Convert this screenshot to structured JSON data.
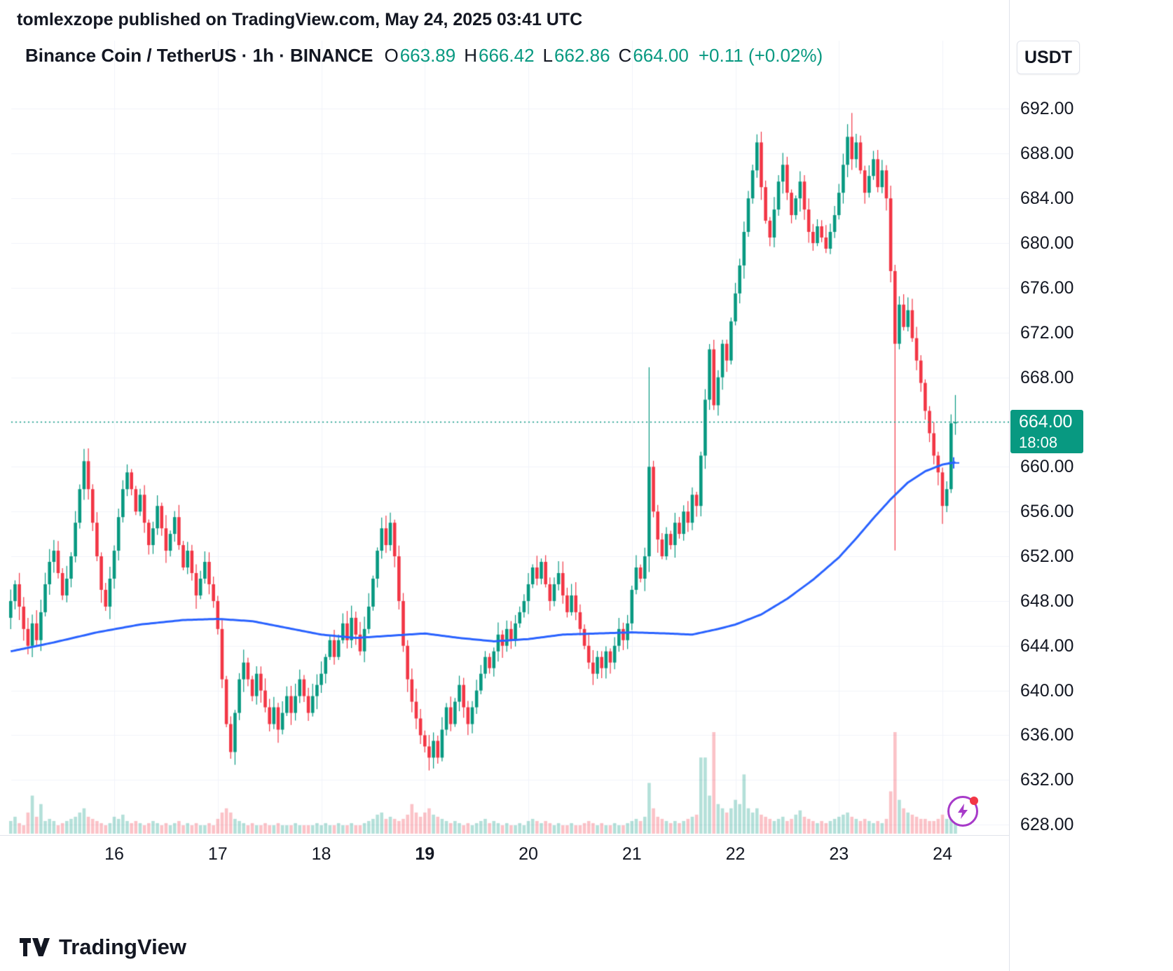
{
  "header": {
    "published_line": "tomlexzope published on TradingView.com, May 24, 2025 03:41 UTC"
  },
  "symbol_bar": {
    "title": "Binance Coin / TetherUS · 1h · BINANCE",
    "o_label": "O",
    "o": "663.89",
    "h_label": "H",
    "h": "666.42",
    "l_label": "L",
    "l": "662.86",
    "c_label": "C",
    "c": "664.00",
    "change": "+0.11 (+0.02%)"
  },
  "price_scale": {
    "currency": "USDT",
    "current_price": "664.00",
    "countdown": "18:08"
  },
  "footer": {
    "brand": "TradingView"
  },
  "colors": {
    "up": "#089981",
    "down": "#f23645",
    "volume_up": "rgba(8,153,129,0.30)",
    "volume_down": "rgba(242,54,69,0.30)",
    "ma_line": "#2962ff",
    "current_price_line": "#089981",
    "grid": "#f0f3fa",
    "text": "#131722",
    "axis_border": "#e0e3eb",
    "tag_bg": "#089981",
    "crosshair_plus": "#2962ff",
    "flash_purple": "#a73ac9",
    "dot_red": "#f23645"
  },
  "chart_data": {
    "type": "candlestick",
    "title": "Binance Coin / TetherUS",
    "interval": "1h",
    "exchange": "BINANCE",
    "quote_currency": "USDT",
    "last_bar": {
      "o": 663.89,
      "h": 666.42,
      "l": 662.86,
      "c": 664.0,
      "change": 0.11,
      "change_pct": 0.02
    },
    "current_price": 664.0,
    "bar_countdown": "18:08",
    "ylim": [
      627.2,
      698.1
    ],
    "y_ticks": [
      628,
      632,
      636,
      640,
      644,
      648,
      652,
      656,
      660,
      664,
      668,
      672,
      676,
      680,
      684,
      688,
      692
    ],
    "day_ticks": [
      {
        "label": "16",
        "index": 24,
        "bold": false
      },
      {
        "label": "17",
        "index": 48,
        "bold": false
      },
      {
        "label": "18",
        "index": 72,
        "bold": false
      },
      {
        "label": "19",
        "index": 96,
        "bold": true
      },
      {
        "label": "20",
        "index": 120,
        "bold": false
      },
      {
        "label": "21",
        "index": 144,
        "bold": false
      },
      {
        "label": "22",
        "index": 168,
        "bold": false
      },
      {
        "label": "23",
        "index": 192,
        "bold": false
      },
      {
        "label": "24",
        "index": 216,
        "bold": false
      }
    ],
    "candles_per_day": 24,
    "first_open": 646.5,
    "closes": [
      648,
      649.5,
      647.5,
      645.5,
      644,
      646,
      644.5,
      647,
      649.5,
      651.5,
      652.5,
      650.5,
      648.5,
      650,
      652,
      655,
      658,
      660.5,
      658,
      655,
      652,
      649,
      647.5,
      650,
      652.5,
      655.5,
      658,
      659.5,
      658,
      656,
      657.5,
      655,
      653,
      654.5,
      656.5,
      654.5,
      652.5,
      654,
      655.5,
      653,
      651,
      652.5,
      650.5,
      648.5,
      650,
      651.5,
      649.5,
      648,
      645.5,
      641,
      637,
      634.5,
      638,
      641,
      642.5,
      641,
      639.5,
      641.5,
      640,
      638.5,
      637,
      638.5,
      636.5,
      638,
      639.5,
      638,
      639.5,
      641,
      639.5,
      638,
      639.5,
      640.5,
      641.5,
      643,
      644.5,
      643,
      644.5,
      646,
      644.5,
      646.5,
      645,
      643.5,
      645.5,
      647.5,
      650,
      652.5,
      654.5,
      653,
      655,
      652,
      648,
      644,
      641,
      639,
      637.5,
      636,
      635,
      634,
      635.5,
      634,
      636.5,
      638.5,
      637,
      639,
      640.5,
      638.5,
      637,
      638.5,
      640,
      641.5,
      643,
      642,
      643.5,
      645,
      644,
      645.5,
      644.5,
      646,
      647,
      648,
      649.5,
      651,
      650,
      651.5,
      649.5,
      648,
      649.5,
      650.5,
      648.5,
      647,
      648.5,
      647,
      645.5,
      644,
      642.5,
      641.5,
      643,
      642,
      643.5,
      642.5,
      644,
      645.5,
      644.5,
      646,
      649,
      651,
      650,
      652,
      660,
      656,
      653.5,
      652,
      654,
      653,
      655,
      654,
      656,
      655,
      657.5,
      656.5,
      661,
      666,
      670.5,
      665.5,
      668,
      671,
      669.5,
      673,
      675.5,
      678,
      681,
      684,
      686.5,
      689,
      685,
      682,
      680.5,
      683,
      685.5,
      687,
      684.5,
      682.5,
      684,
      685.5,
      683,
      681,
      680,
      681.5,
      680.5,
      679.5,
      681,
      682.5,
      684.5,
      687,
      689.5,
      687.5,
      689,
      686.5,
      684.5,
      686,
      687.5,
      685,
      686.5,
      684,
      677.5,
      671,
      674.5,
      672.5,
      674,
      671.5,
      669.5,
      667.5,
      665,
      663,
      661,
      659.5,
      656.5,
      658,
      663.89,
      664
    ],
    "volumes": [
      3,
      4,
      2.5,
      2,
      5,
      9,
      4,
      7,
      3,
      3.5,
      3,
      2,
      2.5,
      3,
      3.5,
      4,
      5,
      6,
      4,
      3.5,
      3,
      2.5,
      2,
      2.5,
      4,
      3.5,
      4.5,
      3,
      2.5,
      3,
      2.5,
      2,
      2.5,
      3,
      2.5,
      2,
      2.5,
      2,
      2.5,
      3,
      2,
      2.5,
      2,
      2.5,
      2,
      2,
      2.5,
      2,
      3.5,
      5,
      6,
      5,
      3.5,
      3,
      2.5,
      2,
      2.5,
      2,
      2,
      2.5,
      2,
      2,
      2.5,
      2,
      2,
      2,
      2.5,
      2,
      2,
      2,
      2,
      2.5,
      2,
      2.5,
      2,
      2,
      2.5,
      2,
      2,
      2.5,
      2,
      2,
      2.5,
      3,
      3.5,
      4.5,
      5,
      3.5,
      4,
      3.5,
      3,
      3.5,
      4.5,
      7,
      5,
      4,
      5,
      6,
      4.5,
      4,
      3.5,
      3,
      2.5,
      3,
      2.5,
      2,
      2.5,
      2,
      2.5,
      3,
      3.5,
      2.5,
      3,
      2.5,
      2,
      2.5,
      2,
      2,
      2.5,
      2,
      3,
      3.5,
      3,
      2.5,
      3,
      2.5,
      2,
      2.5,
      2,
      2,
      2.5,
      2,
      2,
      2.5,
      3,
      2.5,
      2,
      2.5,
      2,
      2,
      2.5,
      2,
      2,
      2.5,
      3,
      3.5,
      3,
      4,
      12,
      6,
      4,
      3.5,
      3,
      2.5,
      3,
      2.5,
      3,
      3.5,
      4,
      4.5,
      18,
      18,
      9,
      24,
      7,
      6,
      5,
      6,
      8,
      7,
      14,
      6,
      5,
      6,
      4.5,
      4,
      3.5,
      3,
      3.5,
      4,
      3,
      3.5,
      4.5,
      5.5,
      4,
      3.5,
      3,
      2.5,
      3,
      2.5,
      3,
      3.5,
      4,
      4.5,
      5,
      4,
      3.5,
      3,
      3.5,
      3,
      2.5,
      3,
      2.5,
      3.5,
      10,
      24,
      8,
      6,
      5,
      4.5,
      4,
      3.5,
      3.5,
      3,
      3,
      3.5,
      4.5,
      3.5,
      5,
      4
    ],
    "volume_scale_max": 24,
    "special_wicks": {
      "17": {
        "h": 661.6
      },
      "51": {
        "l": 633.9
      },
      "88": {
        "h": 655.9
      },
      "99": {
        "l": 633.46
      },
      "148": {
        "h": 668.9,
        "l": 650.6
      },
      "195": {
        "h": 691.64
      },
      "205": {
        "l": 652.52
      },
      "216": {
        "l": 654.9
      },
      "219": {
        "h": 666.42,
        "l": 662.86
      }
    },
    "ma_points": [
      [
        0,
        643.5
      ],
      [
        10,
        644.3
      ],
      [
        20,
        645.2
      ],
      [
        30,
        645.9
      ],
      [
        40,
        646.3
      ],
      [
        48,
        646.4
      ],
      [
        56,
        646.2
      ],
      [
        64,
        645.6
      ],
      [
        72,
        645.0
      ],
      [
        80,
        644.7
      ],
      [
        88,
        644.9
      ],
      [
        96,
        645.1
      ],
      [
        104,
        644.7
      ],
      [
        112,
        644.4
      ],
      [
        120,
        644.6
      ],
      [
        128,
        645.0
      ],
      [
        136,
        645.1
      ],
      [
        144,
        645.2
      ],
      [
        152,
        645.1
      ],
      [
        158,
        645.0
      ],
      [
        164,
        645.5
      ],
      [
        168,
        645.9
      ],
      [
        174,
        646.8
      ],
      [
        180,
        648.2
      ],
      [
        186,
        649.9
      ],
      [
        192,
        651.9
      ],
      [
        196,
        653.6
      ],
      [
        200,
        655.4
      ],
      [
        204,
        657.1
      ],
      [
        208,
        658.6
      ],
      [
        212,
        659.6
      ],
      [
        216,
        660.2
      ],
      [
        219,
        660.4
      ]
    ],
    "crosshair_plus_at": {
      "index": 218.6,
      "price": 660.35
    }
  }
}
